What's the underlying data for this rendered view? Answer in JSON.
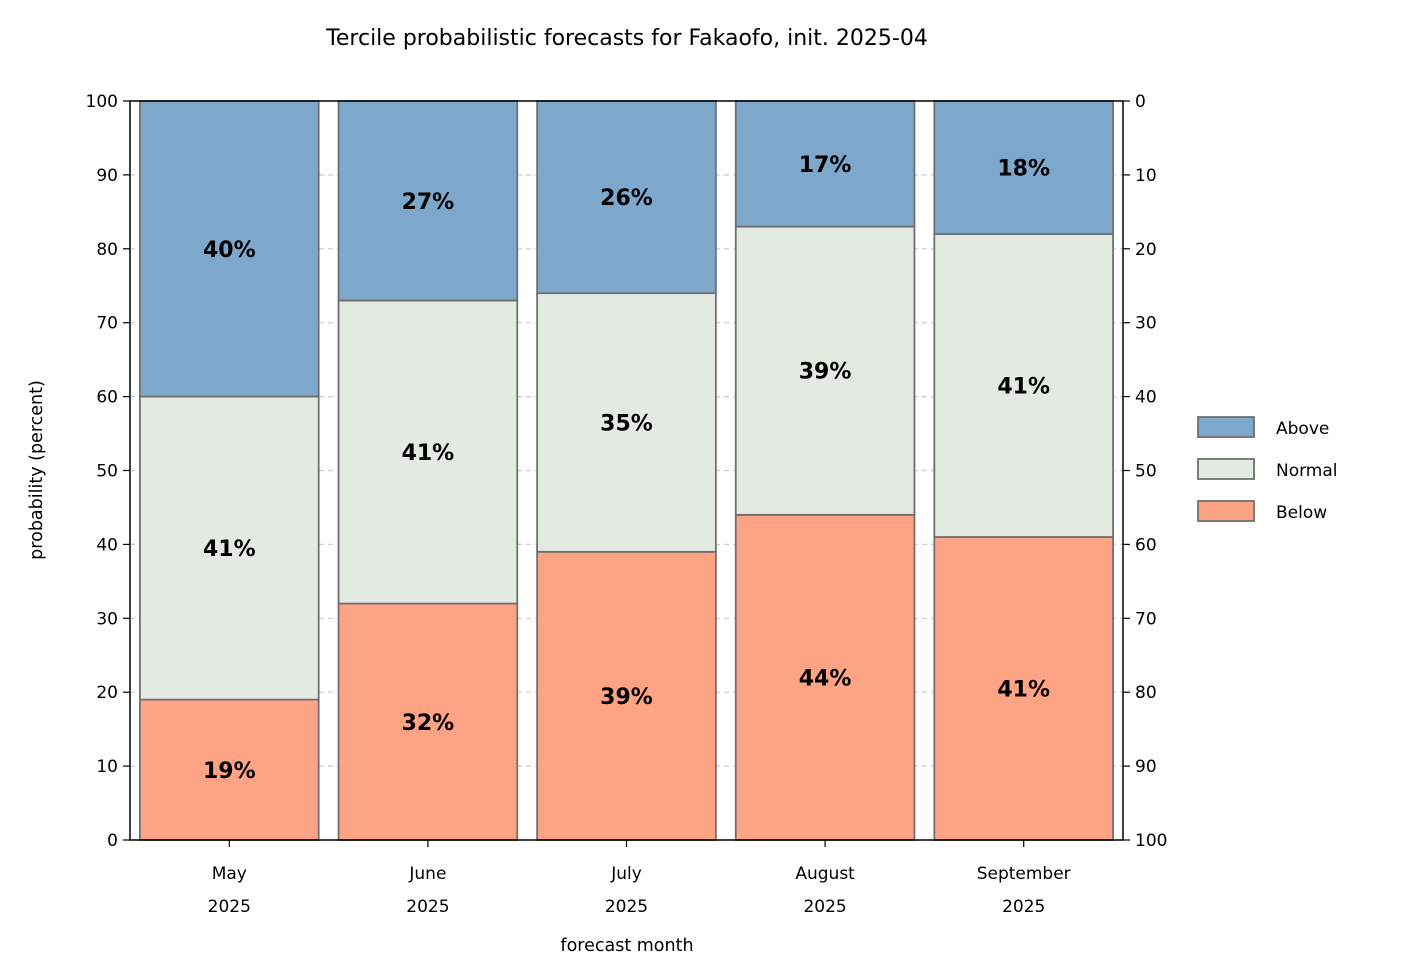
{
  "chart_data": {
    "type": "bar",
    "stacked": true,
    "title": "Tercile probabilistic forecasts for Fakaofo, init. 2025-04",
    "xlabel": "forecast month",
    "ylabel": "probability (percent)",
    "ylim": [
      0,
      100
    ],
    "yticks": [
      "0",
      "10",
      "20",
      "30",
      "40",
      "50",
      "60",
      "70",
      "80",
      "90",
      "100"
    ],
    "y2ticks": [
      "100",
      "90",
      "80",
      "70",
      "60",
      "50",
      "40",
      "30",
      "20",
      "10",
      "0"
    ],
    "categories": [
      [
        "May",
        "2025"
      ],
      [
        "June",
        "2025"
      ],
      [
        "July",
        "2025"
      ],
      [
        "August",
        "2025"
      ],
      [
        "September",
        "2025"
      ]
    ],
    "series": [
      {
        "name": "Below",
        "color": "#ffa385",
        "values": [
          19,
          32,
          39,
          44,
          41
        ]
      },
      {
        "name": "Normal",
        "color": "#e3eae2",
        "values": [
          41,
          41,
          35,
          39,
          41
        ]
      },
      {
        "name": "Above",
        "color": "#7da7cb",
        "values": [
          40,
          27,
          26,
          17,
          18
        ]
      }
    ],
    "legend_order": [
      "Above",
      "Normal",
      "Below"
    ],
    "legend_position": "right",
    "grid": "horizontal dashed",
    "label_suffix": "%"
  }
}
